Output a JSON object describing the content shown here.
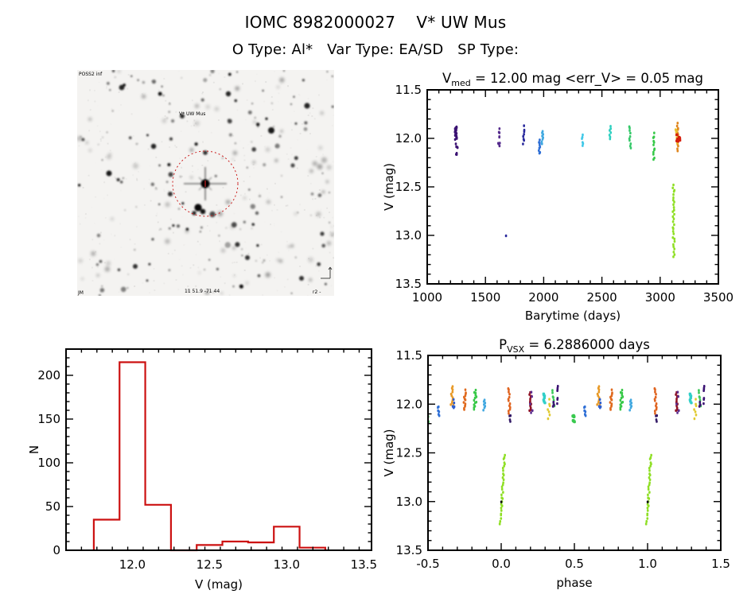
{
  "header": {
    "title": "IOMC 8982000027    V* UW Mus",
    "subtitle": "O Type: Al*   Var Type: EA/SD   SP Type:"
  },
  "finder": {
    "survey_label": "POSS2 inf",
    "target_label": "V* UW Mus",
    "coord_label": "11 51.9  -71 44",
    "corner_bl_label": "JM",
    "corner_br_label": "r2 -",
    "circle_color": "#cc2222",
    "annotation_blue": "#223388",
    "annotation_red": "#cc2222",
    "annotation_green": "#225544"
  },
  "chart_data": [
    {
      "id": "time",
      "type": "scatter",
      "title_parts": [
        "V",
        "med",
        " = 12.00 mag <err_V> = 0.05 mag"
      ],
      "xlabel": "Barytime (days)",
      "ylabel": "V (mag)",
      "xlim": [
        1000,
        3500
      ],
      "ylim": [
        11.5,
        13.5
      ],
      "xticks": [
        1000,
        1500,
        2000,
        2500,
        3000,
        3500
      ],
      "yticks": [
        11.5,
        12.0,
        12.5,
        13.0,
        13.5
      ],
      "x_minor": 100,
      "y_minor": 0.1,
      "x_decimals": 0,
      "y_decimals": 1,
      "periodic": false,
      "clusters": [
        {
          "x": 1246,
          "hw": 9,
          "v0": 11.88,
          "v1": 12.01,
          "n": 18,
          "color": "#3b1273",
          "kind": "column"
        },
        {
          "x": 1250,
          "hw": 11,
          "v0": 12.04,
          "v1": 12.18,
          "n": 7,
          "color": "#3b1273",
          "kind": "scatter"
        },
        {
          "x": 1617,
          "hw": 10,
          "v0": 11.83,
          "v1": 12.08,
          "n": 9,
          "color": "#542a8c",
          "kind": "scatter"
        },
        {
          "x": 1676,
          "hw": 2,
          "v0": 13.0,
          "v1": 13.01,
          "n": 1,
          "color": "#28289c",
          "kind": "column"
        },
        {
          "x": 1827,
          "hw": 7,
          "v0": 11.88,
          "v1": 12.05,
          "n": 8,
          "color": "#28289c",
          "kind": "column"
        },
        {
          "x": 1962,
          "hw": 7,
          "v0": 12.02,
          "v1": 12.16,
          "n": 9,
          "color": "#2e6fd6",
          "kind": "column"
        },
        {
          "x": 1990,
          "hw": 7,
          "v0": 11.93,
          "v1": 12.05,
          "n": 8,
          "color": "#3fa8e0",
          "kind": "column"
        },
        {
          "x": 2332,
          "hw": 6,
          "v0": 11.96,
          "v1": 12.08,
          "n": 6,
          "color": "#3fc8e8",
          "kind": "column"
        },
        {
          "x": 2571,
          "hw": 6,
          "v0": 11.88,
          "v1": 12.0,
          "n": 7,
          "color": "#2fd0c0",
          "kind": "column"
        },
        {
          "x": 2742,
          "hw": 7,
          "v0": 11.88,
          "v1": 12.1,
          "n": 10,
          "color": "#36c96a",
          "kind": "column"
        },
        {
          "x": 2947,
          "hw": 7,
          "v0": 11.95,
          "v1": 12.22,
          "n": 12,
          "color": "#36c948",
          "kind": "column"
        },
        {
          "x": 3116,
          "hw": 8,
          "v0": 12.48,
          "v1": 13.22,
          "n": 30,
          "color": "#8fdf25",
          "kind": "streak"
        },
        {
          "x": 3150,
          "hw": 5,
          "v0": 11.85,
          "v1": 12.12,
          "n": 14,
          "color": "#e0861e",
          "kind": "column"
        },
        {
          "x": 3140,
          "hw": 12,
          "v0": 11.9,
          "v1": 12.1,
          "n": 8,
          "color": "#e8c030",
          "kind": "scatter"
        },
        {
          "x": 3153,
          "hw": 22,
          "v0": 11.95,
          "v1": 12.06,
          "n": 14,
          "color": "#d6200e",
          "kind": "blob"
        }
      ]
    },
    {
      "id": "hist",
      "type": "bar",
      "xlabel": "V (mag)",
      "ylabel": "N",
      "xlim": [
        11.57,
        13.55
      ],
      "ylim": [
        0,
        230
      ],
      "xticks": [
        12.0,
        12.5,
        13.0,
        13.5
      ],
      "yticks": [
        0,
        50,
        100,
        150,
        200
      ],
      "x_minor": 0.1,
      "y_minor": 10,
      "x_decimals": 1,
      "y_decimals": 0,
      "bin_start": 11.75,
      "bin_width": 0.1667,
      "values": [
        35,
        215,
        52,
        0,
        6,
        10,
        9,
        27,
        3
      ],
      "color": "#cc1111"
    },
    {
      "id": "phase",
      "type": "scatter",
      "title_parts": [
        "P",
        "VSX",
        " = 6.2886000 days"
      ],
      "xlabel": "phase",
      "ylabel": "V (mag)",
      "xlim": [
        -0.5,
        1.5
      ],
      "ylim": [
        11.5,
        13.5
      ],
      "xticks": [
        -0.5,
        0.0,
        0.5,
        1.0,
        1.5
      ],
      "yticks": [
        11.5,
        12.0,
        12.5,
        13.0,
        13.5
      ],
      "x_minor": 0.1,
      "y_minor": 0.1,
      "x_decimals": 1,
      "y_decimals": 1,
      "periodic": true,
      "period": 1.0,
      "clusters": [
        {
          "x": -0.505,
          "hw": 0.01,
          "v0": 12.1,
          "v1": 12.2,
          "n": 9,
          "color": "#38c94e",
          "kind": "blob"
        },
        {
          "x": -0.43,
          "hw": 0.007,
          "v0": 12.02,
          "v1": 12.12,
          "n": 6,
          "color": "#2e6fd6",
          "kind": "column"
        },
        {
          "x": -0.335,
          "hw": 0.01,
          "v0": 11.82,
          "v1": 12.03,
          "n": 13,
          "color": "#e89a28",
          "kind": "column"
        },
        {
          "x": -0.328,
          "hw": 0.008,
          "v0": 11.88,
          "v1": 12.06,
          "n": 5,
          "color": "#2e5fd0",
          "kind": "scatter"
        },
        {
          "x": -0.25,
          "hw": 0.009,
          "v0": 11.86,
          "v1": 12.06,
          "n": 13,
          "color": "#e06a1e",
          "kind": "column"
        },
        {
          "x": -0.18,
          "hw": 0.011,
          "v0": 11.86,
          "v1": 12.06,
          "n": 13,
          "color": "#38c948",
          "kind": "column"
        },
        {
          "x": -0.115,
          "hw": 0.007,
          "v0": 11.96,
          "v1": 12.06,
          "n": 7,
          "color": "#41a8e0",
          "kind": "column"
        },
        {
          "x": 0.01,
          "hw": 0.006,
          "v0": 12.52,
          "v1": 13.22,
          "n": 30,
          "color": "#8fdf25",
          "kind": "streak",
          "drift": [
            0.012,
            -0.014
          ]
        },
        {
          "x": 0.0,
          "hw": 0.001,
          "v0": 13.0,
          "v1": 13.01,
          "n": 1,
          "color": "#111111",
          "kind": "column"
        },
        {
          "x": 0.055,
          "hw": 0.007,
          "v0": 11.84,
          "v1": 12.1,
          "n": 13,
          "color": "#e06420",
          "kind": "column"
        },
        {
          "x": 0.062,
          "hw": 0.006,
          "v0": 12.1,
          "v1": 12.18,
          "n": 4,
          "color": "#331a66",
          "kind": "scatter"
        },
        {
          "x": 0.2,
          "hw": 0.007,
          "v0": 11.88,
          "v1": 12.07,
          "n": 12,
          "color": "#8e1024",
          "kind": "column"
        },
        {
          "x": 0.206,
          "hw": 0.009,
          "v0": 11.84,
          "v1": 12.1,
          "n": 5,
          "color": "#5c2d8e",
          "kind": "scatter"
        },
        {
          "x": 0.295,
          "hw": 0.009,
          "v0": 11.88,
          "v1": 12.0,
          "n": 8,
          "color": "#30cfc8",
          "kind": "blob"
        },
        {
          "x": 0.325,
          "hw": 0.007,
          "v0": 11.96,
          "v1": 12.14,
          "n": 7,
          "color": "#e0ca30",
          "kind": "column"
        },
        {
          "x": 0.355,
          "hw": 0.009,
          "v0": 11.86,
          "v1": 12.02,
          "n": 7,
          "color": "#3cc95a",
          "kind": "column"
        },
        {
          "x": 0.362,
          "hw": 0.01,
          "v0": 11.95,
          "v1": 12.05,
          "n": 4,
          "color": "#3b1273",
          "kind": "scatter"
        },
        {
          "x": 0.385,
          "hw": 0.005,
          "v0": 11.73,
          "v1": 12.05,
          "n": 7,
          "color": "#3b1273",
          "kind": "scatter"
        }
      ]
    }
  ]
}
